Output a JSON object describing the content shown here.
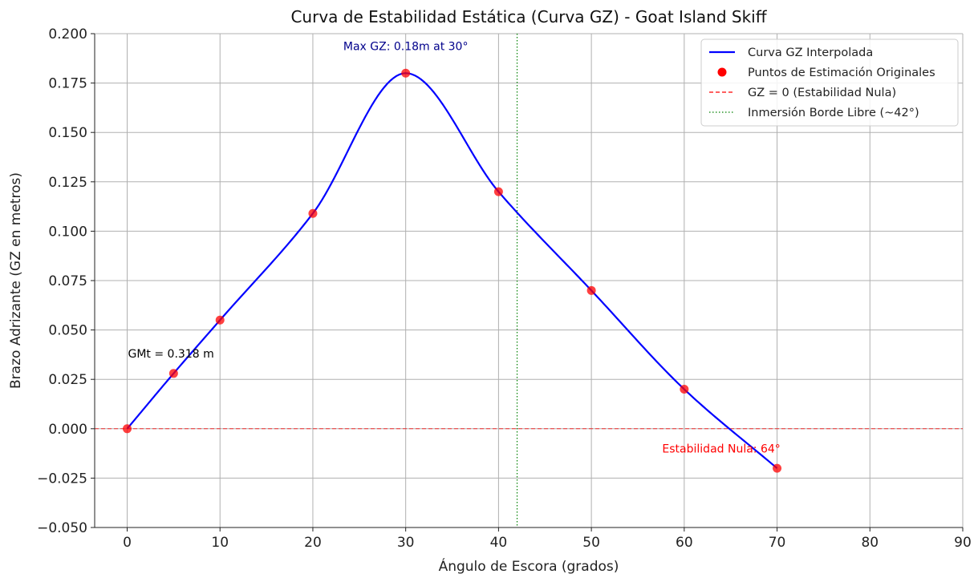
{
  "chart_data": {
    "type": "line",
    "title": "Curva de Estabilidad Estática (Curva GZ) - Goat Island Skiff",
    "xlabel": "Ángulo de Escora (grados)",
    "ylabel": "Brazo Adrizante (GZ en metros)",
    "xlim": [
      -3.5,
      90
    ],
    "ylim": [
      -0.05,
      0.2
    ],
    "xticks": [
      0,
      10,
      20,
      30,
      40,
      50,
      60,
      70,
      80,
      90
    ],
    "yticks": [
      -0.05,
      -0.025,
      0.0,
      0.025,
      0.05,
      0.075,
      0.1,
      0.125,
      0.15,
      0.175,
      0.2
    ],
    "ytick_labels": [
      "−0.050",
      "−0.025",
      "0.000",
      "0.025",
      "0.050",
      "0.075",
      "0.100",
      "0.125",
      "0.150",
      "0.175",
      "0.200"
    ],
    "grid": true,
    "legend_position": "top-right",
    "series": [
      {
        "name": "Curva GZ Interpolada",
        "kind": "line",
        "color": "#0000ff",
        "x": [
          0,
          5,
          10,
          20,
          30,
          40,
          50,
          60,
          70
        ],
        "y": [
          0.0,
          0.028,
          0.055,
          0.109,
          0.18,
          0.12,
          0.07,
          0.02,
          -0.02
        ]
      },
      {
        "name": "Puntos de Estimación Originales",
        "kind": "scatter",
        "color": "#ff0000",
        "x": [
          0,
          5,
          10,
          20,
          30,
          40,
          50,
          60,
          70
        ],
        "y": [
          0.0,
          0.028,
          0.055,
          0.109,
          0.18,
          0.12,
          0.07,
          0.02,
          -0.02
        ]
      }
    ],
    "reference_lines": [
      {
        "name": "GZ = 0 (Estabilidad Nula)",
        "orientation": "horizontal",
        "value": 0.0,
        "color": "#ff0000",
        "style": "dashed"
      },
      {
        "name": "Inmersión Borde Libre (~42°)",
        "orientation": "vertical",
        "value": 42,
        "color": "#008000",
        "style": "dotted"
      }
    ],
    "annotations": [
      {
        "text": "Max GZ: 0.18m at 30°",
        "x": 30,
        "y": 0.18,
        "color": "#00008b"
      },
      {
        "text": "GMt = 0.318 m",
        "x": 5,
        "y": 0.028,
        "color": "#000000"
      },
      {
        "text": "Estabilidad Nula: 64°",
        "x": 64,
        "y": 0.0,
        "color": "#ff0000"
      }
    ]
  }
}
